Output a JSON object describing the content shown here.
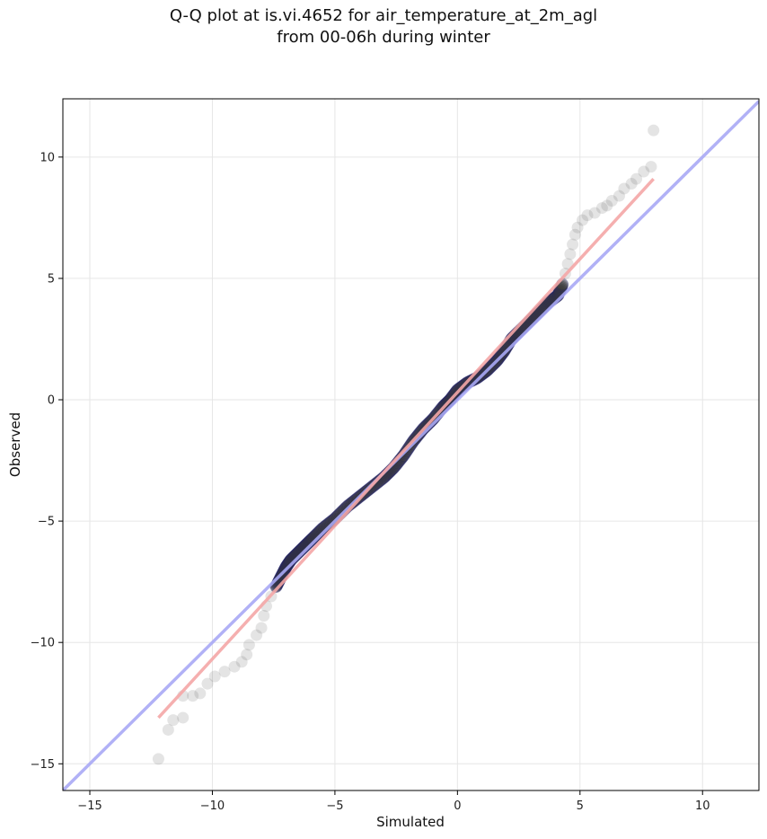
{
  "chart_data": {
    "type": "scatter",
    "title_line1": "Q-Q plot at is.vi.4652 for air_temperature_at_2m_agl",
    "title_line2": "from 00-06h during winter",
    "xlabel": "Simulated",
    "ylabel": "Observed",
    "xlim": [
      -16.1,
      12.3
    ],
    "ylim": [
      -16.1,
      12.4
    ],
    "xticks": [
      -15,
      -10,
      -5,
      0,
      5,
      10
    ],
    "yticks": [
      -15,
      -10,
      -5,
      0,
      5,
      10
    ],
    "xtick_labels": [
      "−15",
      "−10",
      "−5",
      "0",
      "5",
      "10"
    ],
    "ytick_labels": [
      "−15",
      "−10",
      "−5",
      "0",
      "5",
      "10"
    ],
    "grid": true,
    "colors": {
      "points": "#555555",
      "identity_line": "#a8a8f5",
      "fit_line": "#f4a6a6",
      "dense_edge": "#1a1a66",
      "grid": "#e6e6e6"
    },
    "identity_line": {
      "from": [
        -16.1,
        -16.1
      ],
      "to": [
        12.3,
        12.3
      ]
    },
    "fit_line": {
      "from": [
        -12.2,
        -13.1
      ],
      "to": [
        8.0,
        9.1
      ]
    },
    "points_sparse": [
      [
        -12.2,
        -14.8
      ],
      [
        -11.8,
        -13.6
      ],
      [
        -11.6,
        -13.2
      ],
      [
        -11.2,
        -13.1
      ],
      [
        -11.2,
        -12.2
      ],
      [
        -10.8,
        -12.2
      ],
      [
        -10.5,
        -12.1
      ],
      [
        -10.2,
        -11.7
      ],
      [
        -9.9,
        -11.4
      ],
      [
        -9.5,
        -11.2
      ],
      [
        -9.1,
        -11.0
      ],
      [
        -8.8,
        -10.8
      ],
      [
        -8.6,
        -10.5
      ],
      [
        -8.5,
        -10.1
      ],
      [
        -8.2,
        -9.7
      ],
      [
        -8.0,
        -9.4
      ],
      [
        -7.9,
        -8.9
      ],
      [
        -7.8,
        -8.5
      ],
      [
        -7.6,
        -8.1
      ],
      [
        -7.4,
        -7.7
      ],
      [
        4.4,
        5.2
      ],
      [
        4.5,
        5.6
      ],
      [
        4.6,
        6.0
      ],
      [
        4.7,
        6.4
      ],
      [
        4.8,
        6.8
      ],
      [
        4.9,
        7.1
      ],
      [
        5.1,
        7.4
      ],
      [
        5.3,
        7.6
      ],
      [
        5.6,
        7.7
      ],
      [
        5.9,
        7.9
      ],
      [
        6.1,
        8.0
      ],
      [
        6.3,
        8.2
      ],
      [
        6.6,
        8.4
      ],
      [
        6.8,
        8.7
      ],
      [
        7.1,
        8.9
      ],
      [
        7.3,
        9.1
      ],
      [
        7.6,
        9.4
      ],
      [
        7.9,
        9.6
      ],
      [
        8.0,
        11.1
      ]
    ],
    "points_dense_path": [
      [
        -7.4,
        -7.7
      ],
      [
        -7.2,
        -7.3
      ],
      [
        -7.0,
        -6.9
      ],
      [
        -6.8,
        -6.6
      ],
      [
        -6.5,
        -6.3
      ],
      [
        -6.2,
        -6.0
      ],
      [
        -5.9,
        -5.7
      ],
      [
        -5.5,
        -5.3
      ],
      [
        -5.0,
        -4.9
      ],
      [
        -4.5,
        -4.4
      ],
      [
        -4.0,
        -4.0
      ],
      [
        -3.5,
        -3.6
      ],
      [
        -3.0,
        -3.2
      ],
      [
        -2.6,
        -2.8
      ],
      [
        -2.2,
        -2.3
      ],
      [
        -1.8,
        -1.7
      ],
      [
        -1.4,
        -1.2
      ],
      [
        -1.0,
        -0.8
      ],
      [
        -0.6,
        -0.3
      ],
      [
        -0.3,
        0.0
      ],
      [
        0.0,
        0.4
      ],
      [
        0.4,
        0.7
      ],
      [
        0.8,
        0.9
      ],
      [
        1.2,
        1.2
      ],
      [
        1.6,
        1.6
      ],
      [
        1.9,
        2.0
      ],
      [
        2.2,
        2.5
      ],
      [
        2.5,
        2.8
      ],
      [
        2.9,
        3.2
      ],
      [
        3.3,
        3.6
      ],
      [
        3.7,
        4.0
      ],
      [
        4.1,
        4.3
      ],
      [
        4.3,
        4.8
      ]
    ]
  }
}
